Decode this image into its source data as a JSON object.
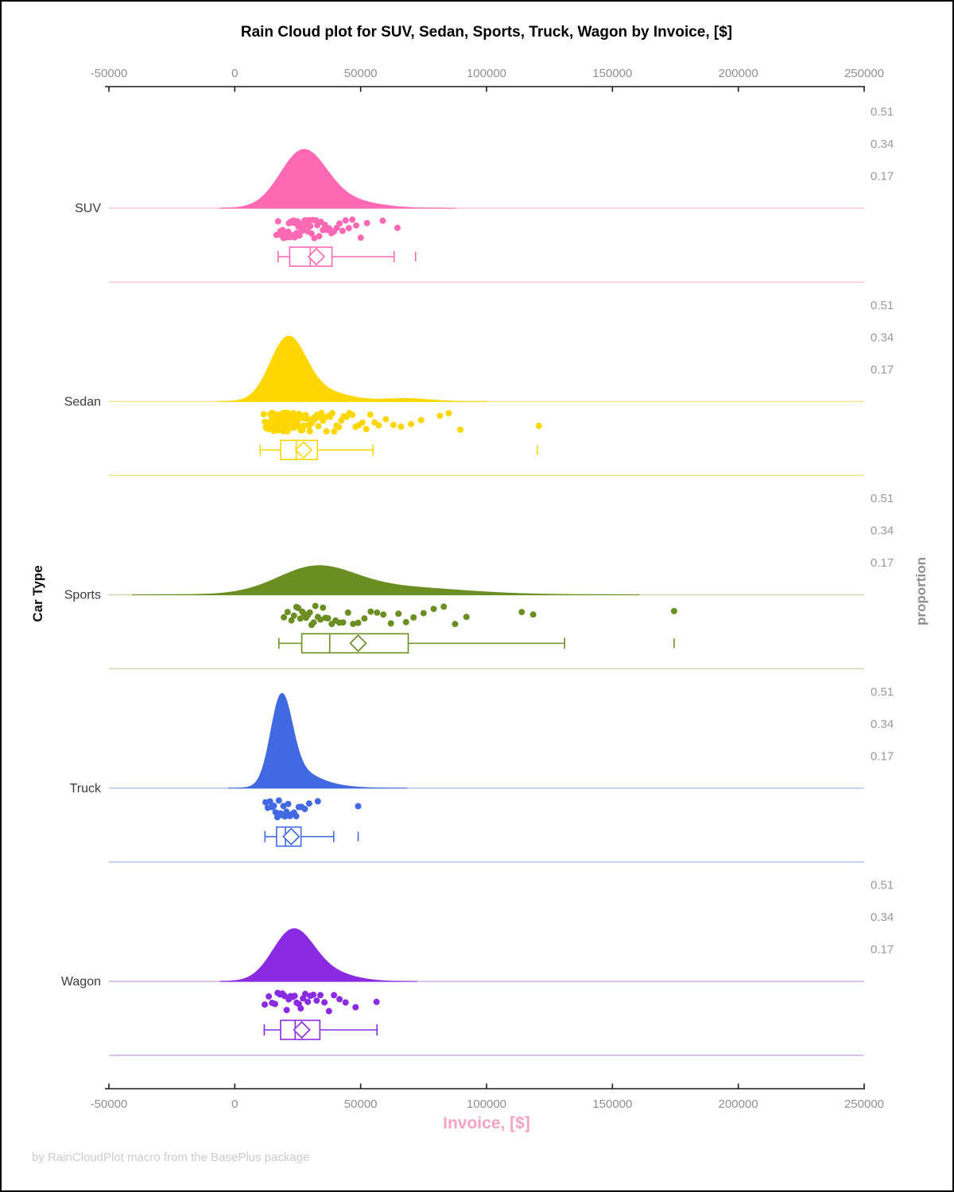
{
  "footer": {
    "text": "by RainCloudPlot macro from the BasePlus package"
  },
  "chart_data": {
    "type": "raincloud",
    "title": "Rain Cloud plot for SUV, Sedan, Sports, Truck, Wagon by Invoice, [$]",
    "xlabel": "Invoice, [$]",
    "ylabel": "Car Type",
    "y2label": "proportion",
    "x_axis": {
      "min": -50000,
      "max": 250000,
      "tick_values": [
        -50000,
        0,
        50000,
        100000,
        150000,
        200000,
        250000
      ],
      "tick_labels": [
        "-50000",
        "0",
        "50000",
        "100000",
        "150000",
        "200000",
        "250000"
      ]
    },
    "proportion_ticks": {
      "values": [
        0.51,
        0.34,
        0.17
      ],
      "labels": [
        "0.51",
        "0.34",
        "0.17"
      ]
    },
    "legend_position": "none",
    "grid": false,
    "series": [
      {
        "name": "SUV",
        "color": "#FF69B4",
        "tint": "#FAC3DD",
        "density_components": [
          [
            27000,
            9000,
            0.285
          ],
          [
            41000,
            13000,
            0.045
          ]
        ],
        "box": {
          "low": 17200,
          "q1": 21800,
          "median": 30000,
          "q3": 38600,
          "high": 63300,
          "mean": 32400,
          "outliers": [
            71800
          ]
        },
        "rain_values": [
          16500,
          17200,
          17800,
          18100,
          18400,
          19000,
          19300,
          19700,
          20100,
          20400,
          20800,
          21200,
          21500,
          21900,
          22300,
          22600,
          23000,
          23400,
          23800,
          24100,
          24500,
          24900,
          25300,
          25700,
          26100,
          26500,
          26900,
          27300,
          27800,
          28200,
          28600,
          29000,
          29500,
          30000,
          30500,
          31000,
          31600,
          32200,
          32800,
          33500,
          34200,
          35000,
          35800,
          36600,
          37500,
          38400,
          39400,
          40500,
          41600,
          42800,
          44000,
          45300,
          46700,
          48200,
          50000,
          52500,
          58800,
          64600
        ]
      },
      {
        "name": "Sedan",
        "color": "#FFD700",
        "tint": "#F3E397",
        "density_components": [
          [
            21000,
            7000,
            0.315
          ],
          [
            33000,
            11000,
            0.055
          ],
          [
            68000,
            9000,
            0.016
          ]
        ],
        "box": {
          "low": 10100,
          "q1": 18200,
          "median": 24400,
          "q3": 32800,
          "high": 54900,
          "mean": 27300,
          "outliers": [
            120200
          ]
        },
        "rain_values": [
          11500,
          12000,
          12300,
          12600,
          12900,
          13100,
          13300,
          13500,
          13700,
          13900,
          14100,
          14250,
          14400,
          14550,
          14700,
          14850,
          15000,
          15150,
          15300,
          15450,
          15600,
          15750,
          15900,
          16050,
          16200,
          16350,
          16500,
          16650,
          16800,
          16950,
          17100,
          17250,
          17400,
          17550,
          17700,
          17850,
          18000,
          18150,
          18300,
          18450,
          18600,
          18750,
          18900,
          19050,
          19200,
          19350,
          19500,
          19650,
          19800,
          20000,
          20150,
          20300,
          20500,
          20650,
          20800,
          21000,
          21200,
          21400,
          21600,
          21800,
          22000,
          22200,
          22400,
          22600,
          22800,
          23000,
          23200,
          23450,
          23700,
          23900,
          24150,
          24400,
          24650,
          24900,
          25150,
          25400,
          25700,
          26000,
          26300,
          26600,
          26900,
          27200,
          27500,
          27900,
          28200,
          28600,
          29000,
          29400,
          29800,
          30200,
          30700,
          31100,
          31600,
          32100,
          32700,
          33200,
          33800,
          34400,
          35000,
          35700,
          36400,
          37100,
          37900,
          38700,
          39500,
          40400,
          41300,
          42300,
          43300,
          44400,
          45500,
          46700,
          48000,
          49300,
          50700,
          52200,
          53800,
          55500,
          57200,
          60000,
          63000,
          66000,
          70000,
          74000,
          81500,
          85000,
          89600,
          120800
        ]
      },
      {
        "name": "Sports",
        "color": "#6B8E23",
        "tint": "#CBD8A8",
        "density_components": [
          [
            32000,
            15000,
            0.128
          ],
          [
            60000,
            28000,
            0.042
          ]
        ],
        "box": {
          "low": 17500,
          "q1": 26600,
          "median": 37700,
          "q3": 68900,
          "high": 131000,
          "mean": 49000,
          "outliers": [
            174500
          ]
        },
        "rain_values": [
          19500,
          21000,
          22500,
          23500,
          24500,
          25200,
          26000,
          26800,
          27500,
          28300,
          29000,
          29800,
          30500,
          31300,
          32000,
          33000,
          34000,
          35000,
          36000,
          37000,
          38500,
          40000,
          41500,
          43000,
          45000,
          47000,
          49000,
          51500,
          54000,
          56500,
          59000,
          62000,
          65000,
          68000,
          71000,
          75000,
          79000,
          83000,
          87500,
          92000,
          114000,
          118500,
          174500
        ]
      },
      {
        "name": "Truck",
        "color": "#4169E1",
        "tint": "#B4C5F0",
        "density_components": [
          [
            18500,
            4200,
            0.44
          ],
          [
            24500,
            7500,
            0.08
          ],
          [
            36000,
            9000,
            0.015
          ]
        ],
        "box": {
          "low": 12000,
          "q1": 16600,
          "median": 20100,
          "q3": 26300,
          "high": 39300,
          "mean": 22400,
          "outliers": [
            49000
          ]
        },
        "rain_values": [
          12200,
          13100,
          14000,
          14800,
          15500,
          16200,
          16900,
          17500,
          18100,
          18700,
          19300,
          19900,
          20500,
          21200,
          21900,
          22700,
          23500,
          24400,
          25400,
          26500,
          27800,
          29500,
          33000,
          49000
        ]
      },
      {
        "name": "Wagon",
        "color": "#8A2BE2",
        "tint": "#D2B2EF",
        "density_components": [
          [
            23000,
            8000,
            0.26
          ],
          [
            36500,
            10000,
            0.045
          ]
        ],
        "box": {
          "low": 11700,
          "q1": 18200,
          "median": 24000,
          "q3": 33800,
          "high": 56500,
          "mean": 26600,
          "outliers": []
        },
        "rain_values": [
          11900,
          13500,
          14800,
          16000,
          17000,
          18000,
          18900,
          19800,
          20600,
          21400,
          22200,
          23000,
          23800,
          24600,
          25400,
          26200,
          27100,
          28000,
          29000,
          30000,
          31200,
          32500,
          34000,
          35600,
          37400,
          39400,
          41600,
          44000,
          48000,
          56300
        ]
      }
    ]
  }
}
